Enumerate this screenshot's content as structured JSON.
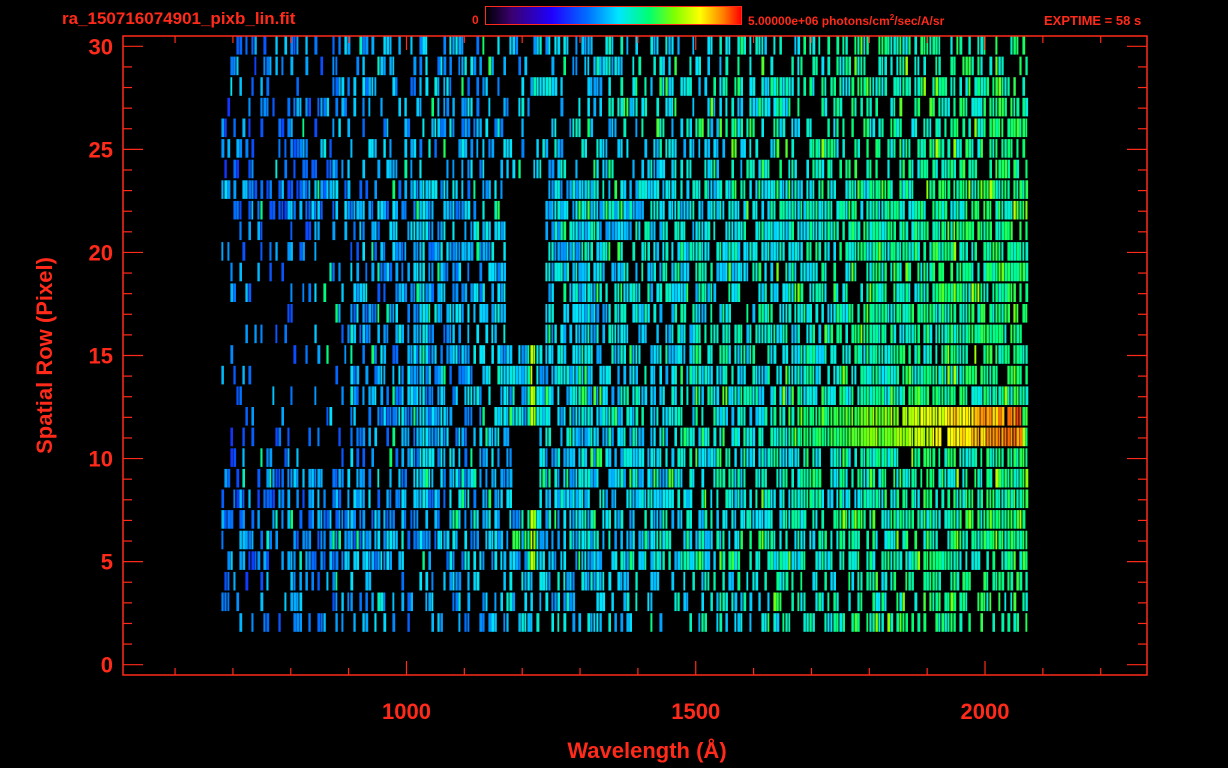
{
  "header": {
    "file_title": "ra_150716074901_pixb_lin.fit",
    "colorbar_min": "0",
    "colorbar_max_prefix": "5.00000e+06 photons/cm",
    "colorbar_max_sup": "2",
    "colorbar_max_suffix": "/sec/A/sr",
    "exptime": "EXPTIME = 58 s"
  },
  "colors": {
    "axis": "#ff2a1a",
    "background": "#000000",
    "colormap": [
      "#000000",
      "#3a0070",
      "#2000ff",
      "#0070ff",
      "#00e6ff",
      "#00ff70",
      "#80ff00",
      "#ffff00",
      "#ff8000",
      "#ff0000"
    ]
  },
  "chart_data": {
    "type": "heatmap",
    "xlabel": "Wavelength (Å)",
    "ylabel": "Spatial Row (Pixel)",
    "xlim": [
      510,
      2280
    ],
    "ylim": [
      -0.5,
      30.5
    ],
    "x_ticks": [
      1000,
      1500,
      2000
    ],
    "y_ticks": [
      0,
      5,
      10,
      15,
      20,
      25,
      30
    ],
    "colorbar_range": [
      0,
      5000000
    ],
    "colorbar_unit": "photons/cm2/sec/A/sr",
    "exposure_time_s": 58,
    "data_x_range": [
      680,
      2070
    ],
    "data_y_range": [
      2,
      30
    ],
    "features": [
      {
        "kind": "emission_line",
        "wavelength": 1026,
        "rows": [
          8,
          23
        ],
        "level": 0.5
      },
      {
        "kind": "emission_line",
        "wavelength": 1216,
        "rows": [
          5,
          16
        ],
        "level": 0.8
      },
      {
        "kind": "emission_line",
        "wavelength": 1304,
        "rows": [
          5,
          23
        ],
        "level": 0.45
      },
      {
        "kind": "emission_line",
        "wavelength": 1810,
        "rows": [
          8,
          23
        ],
        "level": 0.55
      },
      {
        "kind": "continuum_band",
        "wavelength_range": [
          1660,
          2060
        ],
        "rows": [
          11,
          12
        ],
        "level": 0.85
      },
      {
        "kind": "masked_gap",
        "wavelength_range": [
          1180,
          1225
        ],
        "rows": [
          8,
          11
        ]
      },
      {
        "kind": "masked_gap",
        "wavelength_range": [
          1170,
          1235
        ],
        "rows": [
          16,
          23
        ]
      }
    ]
  }
}
